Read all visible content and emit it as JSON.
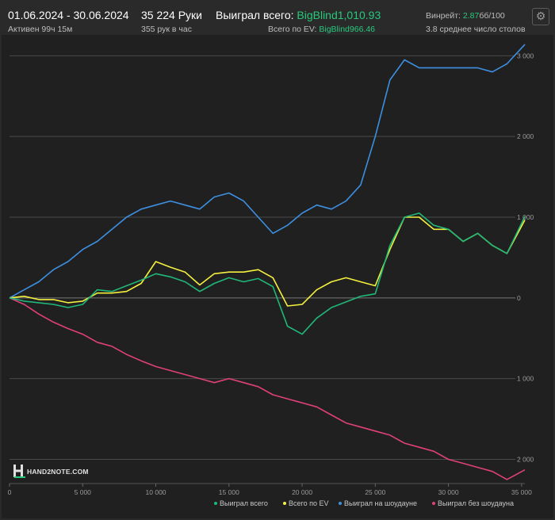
{
  "header": {
    "date_range": "01.06.2024 - 30.06.2024",
    "active_time": "Активен 99ч 15м",
    "hands": "35 224 Руки",
    "hands_per_hour": "355 рук в час",
    "won_total_label": "Выиграл всего:",
    "won_total_value": "BigBlind1,010.93",
    "ev_label": "Всего по EV:",
    "ev_value": "BigBlind966.46",
    "winrate_label": "Винрейт:",
    "winrate_value": "2.87",
    "winrate_unit": "бб/100",
    "avg_tables": "3.8 среднее число столов",
    "settings_icon": "gear-icon"
  },
  "logo": {
    "text": "HAND2NOTE.COM",
    "icon": "h-letter-icon"
  },
  "colors": {
    "total": "#20b878",
    "ev": "#f4f03e",
    "showdown": "#3d8fe0",
    "nonshowdown": "#e0407a",
    "accent": "#27c97c"
  },
  "chart_data": {
    "type": "line",
    "xlim": [
      0,
      35224
    ],
    "ylim": [
      -2300,
      3200
    ],
    "x_ticks": [
      0,
      5000,
      10000,
      15000,
      20000,
      25000,
      30000,
      35000
    ],
    "x_tick_labels": [
      "0",
      "5 000",
      "10 000",
      "15 000",
      "20 000",
      "25 000",
      "30 000",
      "35 000"
    ],
    "y_ticks": [
      3000,
      2000,
      1000,
      0,
      -1000,
      -2000
    ],
    "y_tick_labels": [
      "3 000",
      "2 000",
      "1 000",
      "0",
      "1 000",
      "2 000"
    ],
    "grid": true,
    "legend_position": "bottom-right",
    "series": [
      {
        "name": "Выиграл всего",
        "color": "#20b878",
        "x": [
          0,
          1000,
          2000,
          3000,
          4000,
          5000,
          6000,
          7000,
          8000,
          9000,
          10000,
          11000,
          12000,
          13000,
          14000,
          15000,
          16000,
          17000,
          18000,
          19000,
          20000,
          21000,
          22000,
          23000,
          24000,
          25000,
          26000,
          27000,
          28000,
          29000,
          30000,
          31000,
          32000,
          33000,
          34000,
          35224
        ],
        "values": [
          0,
          -40,
          -60,
          -80,
          -120,
          -80,
          100,
          80,
          150,
          220,
          300,
          260,
          200,
          80,
          180,
          250,
          200,
          240,
          140,
          -350,
          -450,
          -250,
          -120,
          -50,
          20,
          50,
          650,
          1000,
          1050,
          900,
          850,
          700,
          800,
          650,
          550,
          1010
        ]
      },
      {
        "name": "Всего по EV",
        "color": "#f4f03e",
        "x": [
          0,
          1000,
          2000,
          3000,
          4000,
          5000,
          6000,
          7000,
          8000,
          9000,
          10000,
          11000,
          12000,
          13000,
          14000,
          15000,
          16000,
          17000,
          18000,
          19000,
          20000,
          21000,
          22000,
          23000,
          24000,
          25000,
          26000,
          27000,
          28000,
          29000,
          30000,
          31000,
          32000,
          33000,
          34000,
          35224
        ],
        "values": [
          0,
          20,
          -20,
          -20,
          -60,
          -40,
          60,
          60,
          80,
          180,
          450,
          380,
          320,
          160,
          300,
          320,
          320,
          350,
          250,
          -100,
          -80,
          100,
          200,
          250,
          200,
          150,
          600,
          1000,
          1000,
          850,
          850,
          700,
          800,
          650,
          550,
          966
        ]
      },
      {
        "name": "Выиграл на шоудауне",
        "color": "#3d8fe0",
        "x": [
          0,
          1000,
          2000,
          3000,
          4000,
          5000,
          6000,
          7000,
          8000,
          9000,
          10000,
          11000,
          12000,
          13000,
          14000,
          15000,
          16000,
          17000,
          18000,
          19000,
          20000,
          21000,
          22000,
          23000,
          24000,
          25000,
          26000,
          27000,
          28000,
          29000,
          30000,
          31000,
          32000,
          33000,
          34000,
          35224
        ],
        "values": [
          0,
          100,
          200,
          350,
          450,
          600,
          700,
          850,
          1000,
          1100,
          1150,
          1200,
          1150,
          1100,
          1250,
          1300,
          1200,
          1000,
          800,
          900,
          1050,
          1150,
          1100,
          1200,
          1400,
          2000,
          2700,
          2950,
          2850,
          2850,
          2850,
          2850,
          2850,
          2800,
          2900,
          3140
        ]
      },
      {
        "name": "Выиграл без шоудауна",
        "color": "#e0407a",
        "x": [
          0,
          1000,
          2000,
          3000,
          4000,
          5000,
          6000,
          7000,
          8000,
          9000,
          10000,
          11000,
          12000,
          13000,
          14000,
          15000,
          16000,
          17000,
          18000,
          19000,
          20000,
          21000,
          22000,
          23000,
          24000,
          25000,
          26000,
          27000,
          28000,
          29000,
          30000,
          31000,
          32000,
          33000,
          34000,
          35224
        ],
        "values": [
          0,
          -80,
          -200,
          -300,
          -380,
          -450,
          -550,
          -600,
          -700,
          -780,
          -850,
          -900,
          -950,
          -1000,
          -1050,
          -1000,
          -1050,
          -1100,
          -1200,
          -1250,
          -1300,
          -1350,
          -1450,
          -1550,
          -1600,
          -1650,
          -1700,
          -1800,
          -1850,
          -1900,
          -2000,
          -2050,
          -2100,
          -2150,
          -2250,
          -2130
        ]
      }
    ]
  }
}
